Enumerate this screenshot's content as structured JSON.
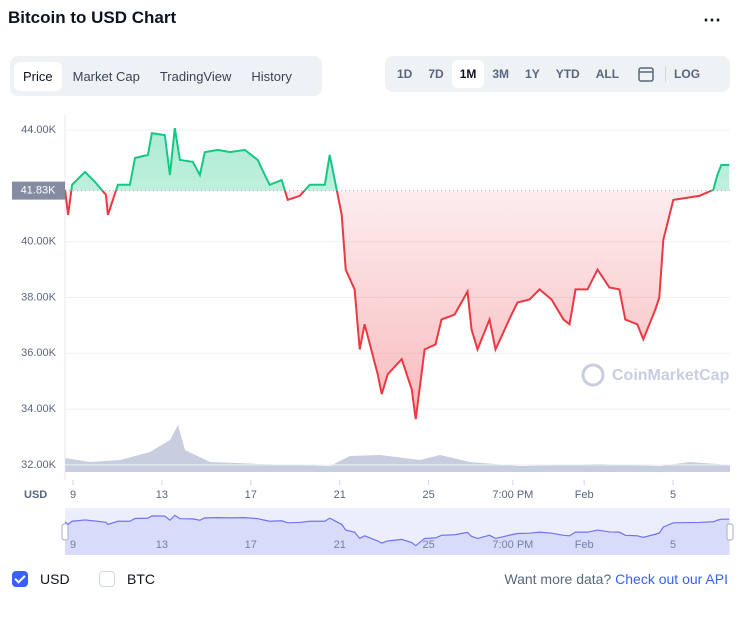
{
  "header": {
    "title": "Bitcoin to USD Chart",
    "tabs": [
      "Price",
      "Market Cap",
      "TradingView",
      "History"
    ],
    "ranges": [
      "1D",
      "7D",
      "1M",
      "3M",
      "1Y",
      "YTD",
      "ALL"
    ],
    "log": "LOG"
  },
  "chart_data": {
    "type": "line",
    "axis_unit": "USD",
    "watermark": "CoinMarketCap",
    "x": [
      8.64,
      8.78,
      8.96,
      9.54,
      9.99,
      10.48,
      10.57,
      11.02,
      11.56,
      11.79,
      12.37,
      12.55,
      13.13,
      13.36,
      13.58,
      13.81,
      14.39,
      14.71,
      14.93,
      15.52,
      16.06,
      16.73,
      17.31,
      17.63,
      17.85,
      18.39,
      18.66,
      19.2,
      19.65,
      20.33,
      20.55,
      20.91,
      21.09,
      21.27,
      21.67,
      21.9,
      22.12,
      22.71,
      22.89,
      23.16,
      23.79,
      24.24,
      24.42,
      24.82,
      25.31,
      25.58,
      26.17,
      26.75,
      26.93,
      27.2,
      27.74,
      28.01,
      28.73,
      29.0,
      29.54,
      29.99,
      30.53,
      31.07,
      31.34,
      31.61,
      32.15,
      32.6,
      33.13,
      33.58,
      33.85,
      34.39,
      34.66,
      35.2,
      35.38,
      35.56,
      36.01,
      37.18,
      37.81,
      37.99,
      38.17,
      38.53
    ],
    "values": [
      41860,
      40960,
      42040,
      42500,
      42140,
      41680,
      40960,
      42040,
      42040,
      43000,
      43110,
      43890,
      43820,
      42390,
      44070,
      42930,
      42860,
      42390,
      43210,
      43290,
      43210,
      43290,
      42930,
      42390,
      42040,
      42210,
      41500,
      41640,
      42040,
      42040,
      43110,
      41680,
      40960,
      39000,
      38290,
      36140,
      37040,
      35250,
      34540,
      35250,
      35790,
      34710,
      33640,
      36140,
      36320,
      37210,
      37390,
      38210,
      36860,
      36140,
      37210,
      36140,
      37390,
      37820,
      37930,
      38290,
      37930,
      37210,
      37040,
      38290,
      38290,
      39000,
      38360,
      38290,
      37210,
      37040,
      36500,
      37570,
      38000,
      40070,
      41500,
      41640,
      41860,
      42390,
      42750,
      42750
    ],
    "reference": {
      "value": 41830,
      "label": "41.83K"
    },
    "color_above": "#16c784",
    "color_below": "#ea3943",
    "navigator_color": "#6f73f2",
    "xlim": [
      8.64,
      38.56
    ],
    "ylim": [
      31460,
      44540
    ],
    "xticks": [
      9,
      13,
      17,
      21,
      25,
      {
        "value": 28.79,
        "label": "7:00 PM"
      },
      {
        "value": 32,
        "label": "Feb"
      },
      {
        "value": 36,
        "label": "5"
      }
    ],
    "yticks": [
      {
        "value": 32000,
        "label": "32.00K"
      },
      {
        "value": 34000,
        "label": "34.00K"
      },
      {
        "value": 36000,
        "label": "36.00K"
      },
      {
        "value": 38000,
        "label": "38.00K"
      },
      {
        "value": 40000,
        "label": "40.00K"
      },
      {
        "value": 44000,
        "label": "44.00K"
      }
    ],
    "grid": true
  },
  "footer": {
    "toggles": [
      "USD",
      "BTC"
    ],
    "prompt": "Want more data?",
    "link": "Check out our API"
  }
}
